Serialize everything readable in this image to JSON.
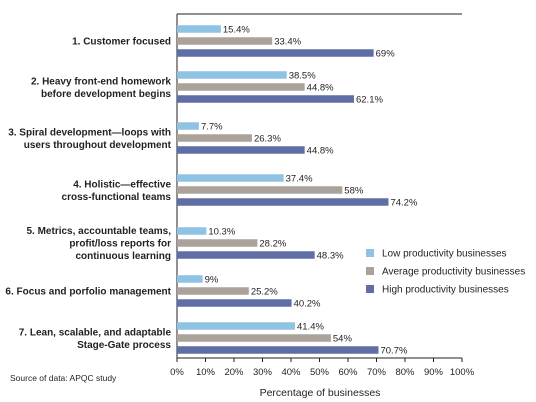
{
  "chart_data": {
    "type": "bar",
    "orientation": "horizontal",
    "categories": [
      [
        "1. Customer focused"
      ],
      [
        "2. Heavy front-end homework",
        "before development begins"
      ],
      [
        "3. Spiral development—loops with",
        "users throughout development"
      ],
      [
        "4. Holistic—effective",
        "cross-functional teams"
      ],
      [
        "5. Metrics, accountable teams,",
        "profit/loss reports for",
        "continuous learning"
      ],
      [
        "6. Focus and porfolio management"
      ],
      [
        "7. Lean, scalable, and adaptable",
        "Stage-Gate process"
      ]
    ],
    "series": [
      {
        "name": "Low productivity businesses",
        "color": "#8fc3e4",
        "values": [
          15.4,
          38.5,
          7.7,
          37.4,
          10.3,
          9,
          41.4
        ],
        "labels": [
          "15.4%",
          "38.5%",
          "7.7%",
          "37.4%",
          "10.3%",
          "9%",
          "41.4%"
        ]
      },
      {
        "name": "Average productivity businesses",
        "color": "#aba39b",
        "values": [
          33.4,
          44.8,
          26.3,
          58,
          28.2,
          25.2,
          54
        ],
        "labels": [
          "33.4%",
          "44.8%",
          "26.3%",
          "58%",
          "28.2%",
          "25.2%",
          "54%"
        ]
      },
      {
        "name": "High productivity businesses",
        "color": "#5f6fa6",
        "values": [
          69,
          62.1,
          44.8,
          74.2,
          48.3,
          40.2,
          70.7
        ],
        "labels": [
          "69%",
          "62.1%",
          "44.8%",
          "74.2%",
          "48.3%",
          "40.2%",
          "70.7%"
        ]
      }
    ],
    "xlim": [
      0,
      100
    ],
    "xticks": [
      "0%",
      "10%",
      "20%",
      "30%",
      "40%",
      "50%",
      "60%",
      "70%",
      "80%",
      "90%",
      "100%"
    ],
    "xlabel": "Percentage of businesses",
    "ylabel": "",
    "grid": false,
    "legend_position": "right"
  },
  "source_note": "Source of data: APQC study"
}
